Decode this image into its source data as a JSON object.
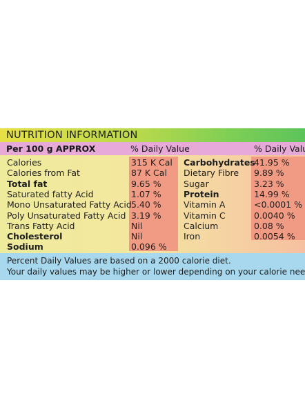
{
  "title": "NUTRITION INFORMATION",
  "header": {
    "per_label": "Per 100 g APPROX",
    "pct_daily_left": "% Daily Value",
    "pct_daily_right": "% Daily Value"
  },
  "left_rows": [
    {
      "name": "Calories",
      "value": "315 K Cal",
      "bold": false
    },
    {
      "name": "Calories from Fat",
      "value": "87 K Cal",
      "bold": false
    },
    {
      "name": "Total fat",
      "value": "9.65 %",
      "bold": true
    },
    {
      "name": "Saturated fatty Acid",
      "value": "1.07 %",
      "bold": false
    },
    {
      "name": "Mono Unsaturated Fatty Acid",
      "value": "5.40 %",
      "bold": false
    },
    {
      "name": "Poly Unsaturated Fatty Acid",
      "value": "3.19 %",
      "bold": false
    },
    {
      "name": "Trans Fatty Acid",
      "value": "Nil",
      "bold": false
    },
    {
      "name": "Cholesterol",
      "value": "Nil",
      "bold": true
    },
    {
      "name": "Sodium",
      "value": "0.096 %",
      "bold": true
    }
  ],
  "right_rows": [
    {
      "name": "Carbohydrates",
      "value": "41.95 %",
      "bold": true
    },
    {
      "name": "Dietary Fibre",
      "value": "9.89 %",
      "bold": false
    },
    {
      "name": "Sugar",
      "value": "3.23 %",
      "bold": false
    },
    {
      "name": "Protein",
      "value": "14.99 %",
      "bold": true
    },
    {
      "name": "Vitamin A",
      "value": "<0.0001 %",
      "bold": false
    },
    {
      "name": "Vitamin C",
      "value": "0.0040 %",
      "bold": false
    },
    {
      "name": "Calcium",
      "value": "0.08 %",
      "bold": false
    },
    {
      "name": "Iron",
      "value": "0.0054 %",
      "bold": false
    }
  ],
  "footer": {
    "line1": "Percent Daily Values are based on a 2000 calorie diet.",
    "line2": "Your daily values may be higher or lower depending on your calorie needs."
  }
}
